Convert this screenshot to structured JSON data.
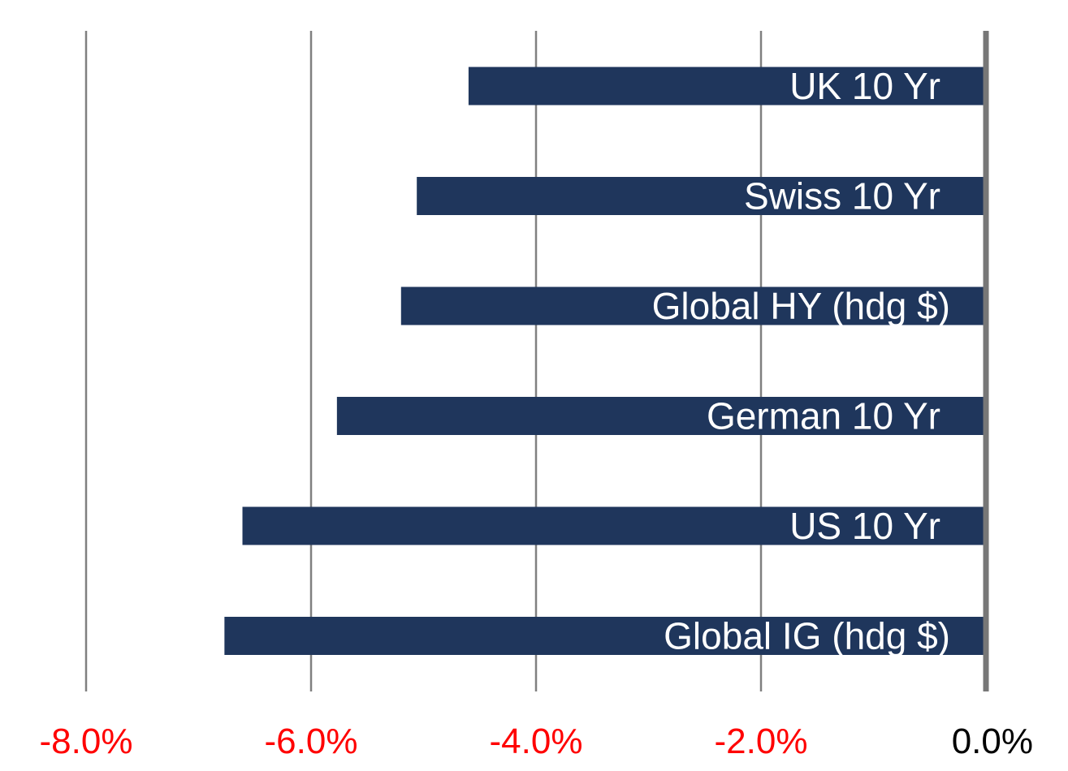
{
  "chart_data": {
    "type": "bar",
    "orientation": "horizontal",
    "categories": [
      "UK 10 Yr",
      "Swiss 10 Yr",
      "Global HY (hdg $)",
      "German 10 Yr",
      "US 10 Yr",
      "Global IG (hdg $)"
    ],
    "values": [
      -4.6,
      -5.06,
      -5.2,
      -5.77,
      -6.61,
      -6.77
    ],
    "xlim": [
      -8.0,
      0.0
    ],
    "x_ticks": [
      -8.0,
      -6.0,
      -4.0,
      -2.0,
      0.0
    ],
    "x_tick_labels": [
      "-8.0%",
      "-6.0%",
      "-4.0%",
      "-2.0%",
      "0.0%"
    ],
    "grid": true,
    "legend": "none",
    "labels_inside_bars": true
  },
  "colors": {
    "bar": "#1f365c",
    "bar_label": "#ffffff",
    "grid": "#808080",
    "zero_axis": "#777777",
    "negative_tick": "#ff0000",
    "zero_tick": "#000000"
  }
}
